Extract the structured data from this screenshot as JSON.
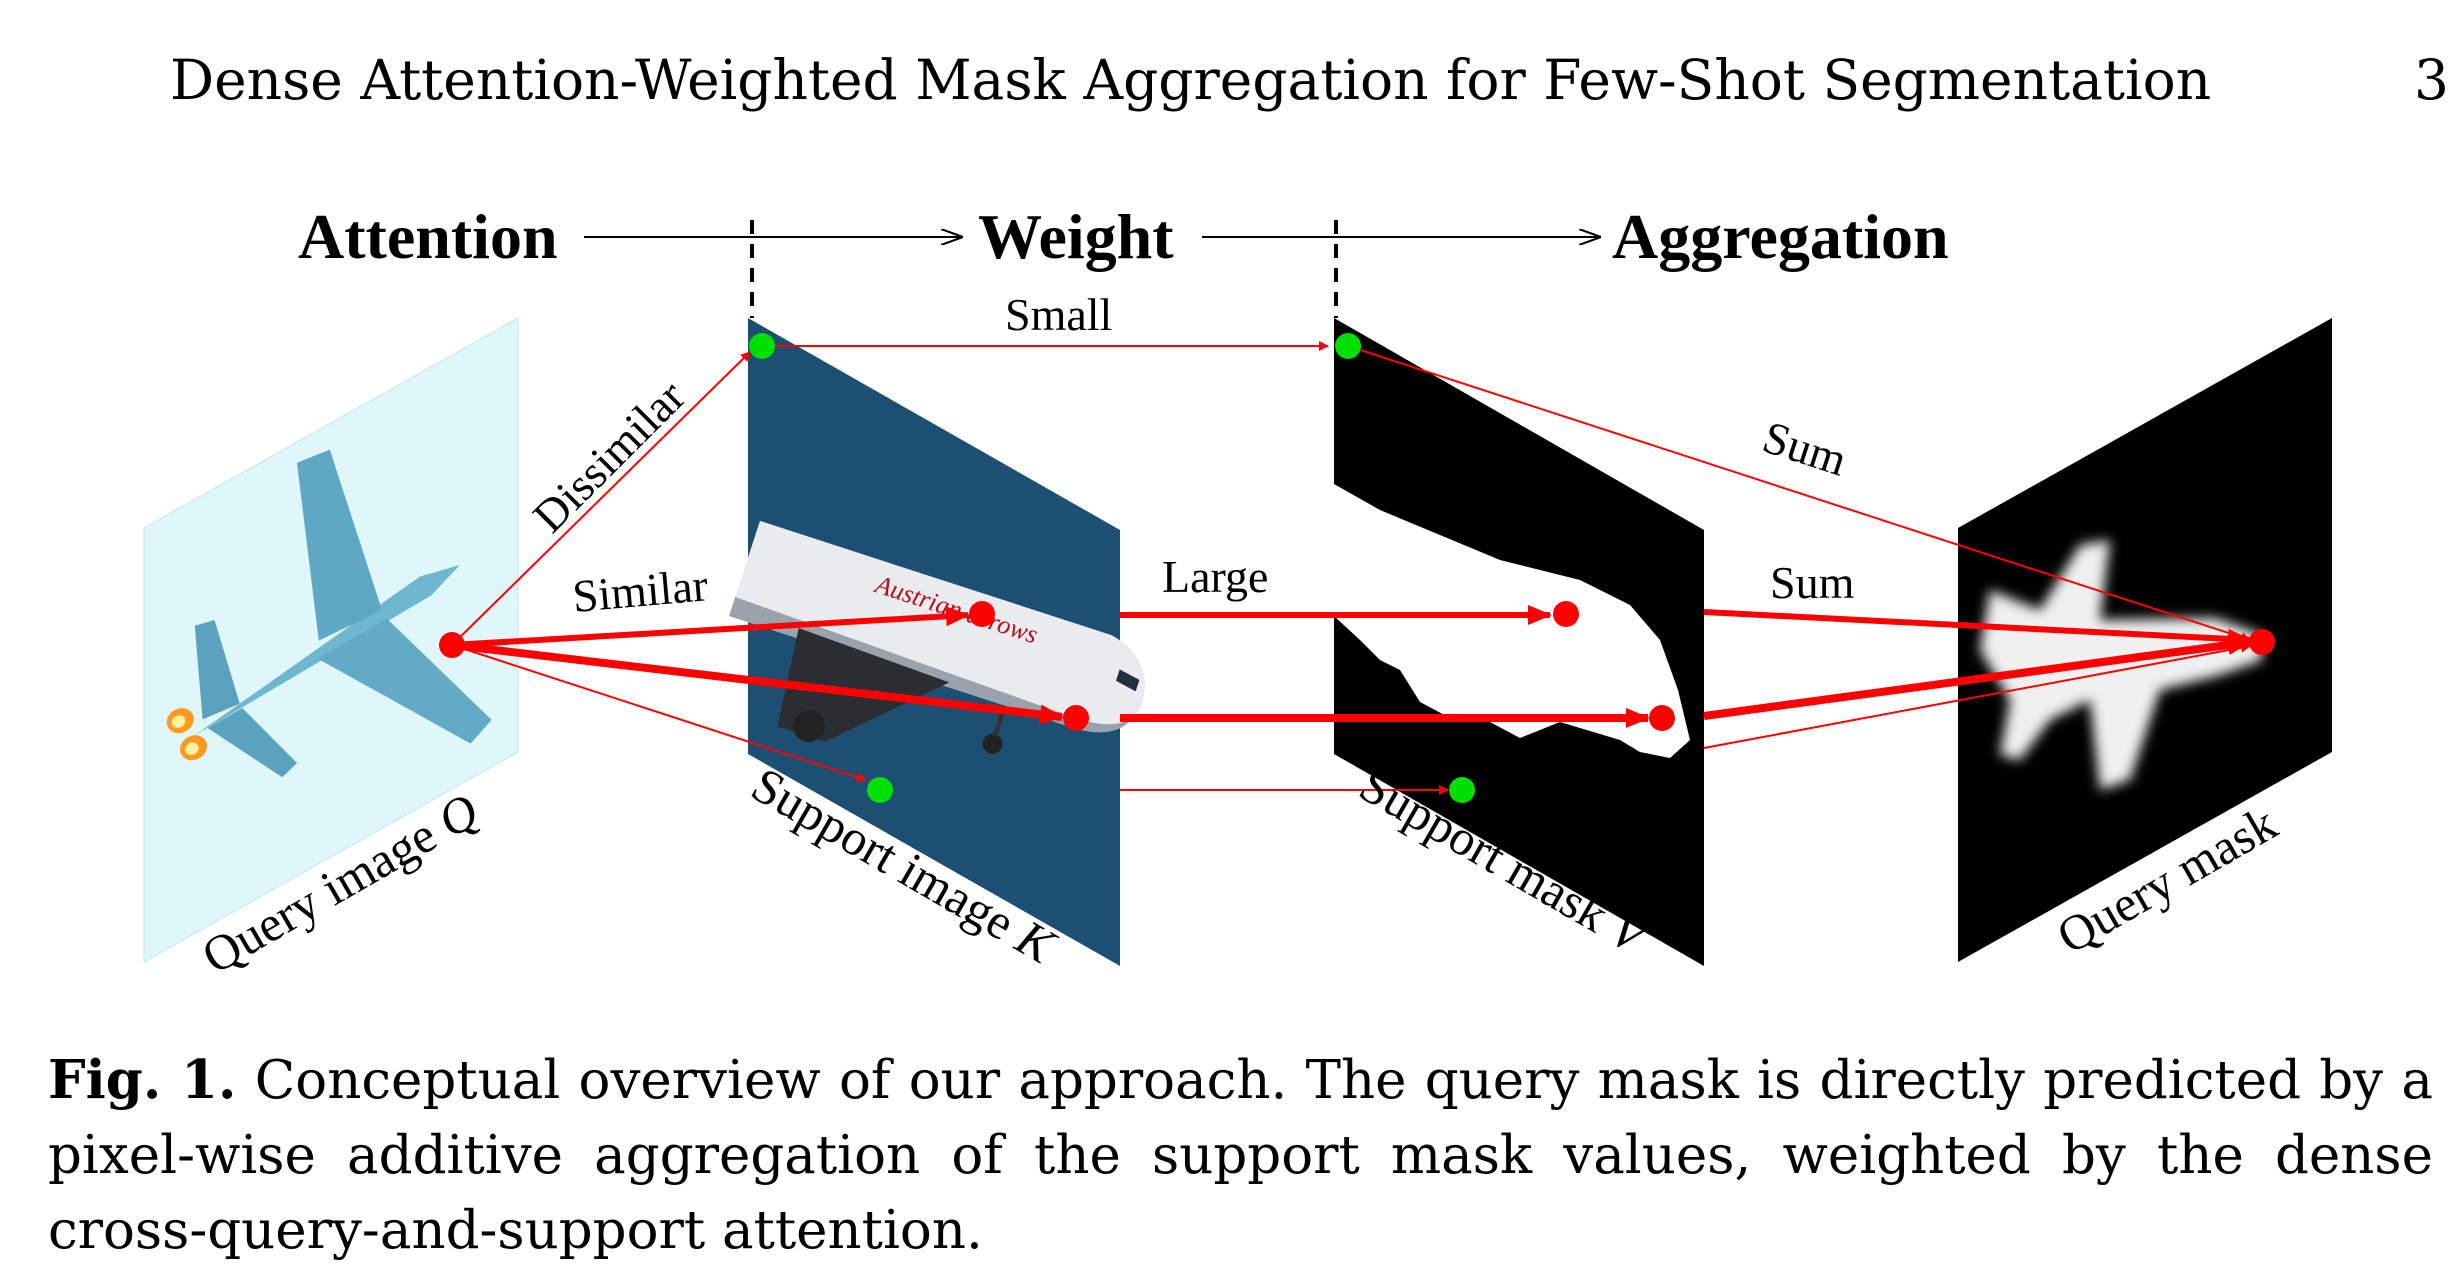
{
  "header": {
    "running_title": "Dense Attention-Weighted Mask Aggregation for Few-Shot Segmentation",
    "page_number": "3"
  },
  "figure": {
    "stages": [
      "Attention",
      "Weight",
      "Aggregation"
    ],
    "edge_labels": {
      "dissimilar": "Dissimilar",
      "similar": "Similar",
      "small": "Small",
      "large": "Large",
      "sum_top": "Sum",
      "sum_mid": "Sum"
    },
    "panels": {
      "query_image": {
        "label": "Query image ",
        "symbol": "Q"
      },
      "support_image": {
        "label": "Support image ",
        "symbol": "K"
      },
      "support_mask": {
        "label": "Support mask ",
        "symbol": "V"
      },
      "query_mask": {
        "label": "Query mask"
      }
    },
    "support_image_text": "Austrian arrows",
    "colors": {
      "arrow": "#ff0000",
      "point_red": "#ff0000",
      "point_green": "#00e000",
      "sky": "#1d4f73",
      "query_bg": "#dff6fa"
    }
  },
  "caption": {
    "label": "Fig. 1.",
    "text": " Conceptual overview of our approach. The query mask is directly predicted by a pixel-wise additive aggregation of the support mask values, weighted by the dense cross-query-and-support attention."
  }
}
